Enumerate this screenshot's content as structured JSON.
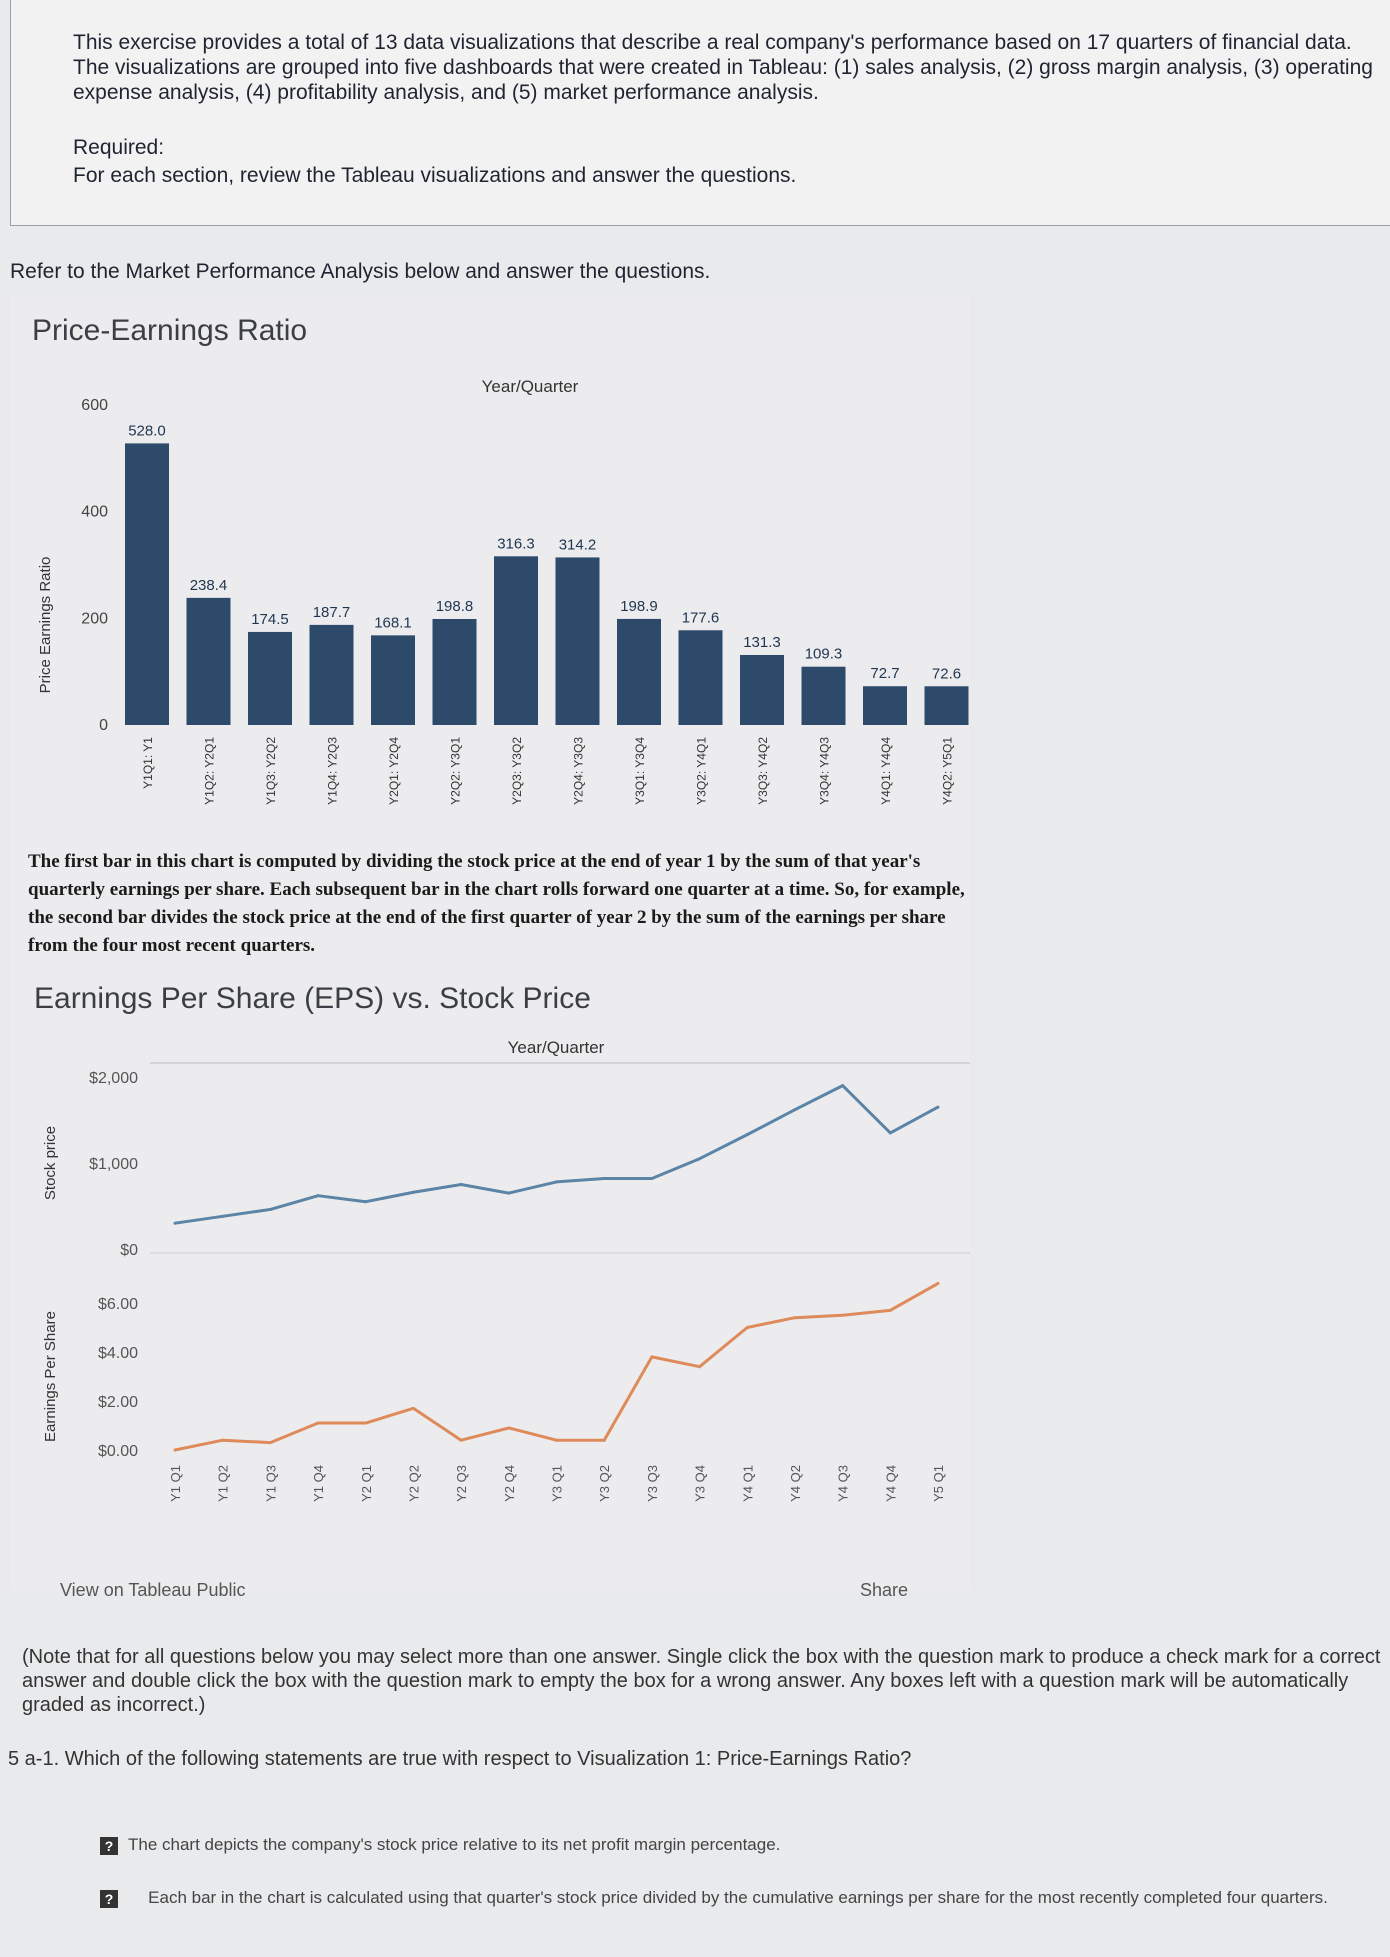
{
  "intro": {
    "text": "This exercise provides a total of 13 data visualizations that describe a real company's performance based on 17 quarters of financial data. The visualizations are grouped into five dashboards that were created in Tableau: (1) sales analysis, (2) gross margin analysis, (3) operating expense analysis, (4) profitability analysis, and (5) market performance analysis.",
    "required_label": "Required:",
    "required_text": "For each section, review the Tableau visualizations and answer the questions."
  },
  "refer_text": "Refer to the Market Performance Analysis below and answer the questions.",
  "chart_data": [
    {
      "type": "bar",
      "title": "Price-Earnings Ratio",
      "xlabel": "Year/Quarter",
      "ylabel": "Price Earnings Ratio",
      "ylim": [
        0,
        600
      ],
      "yticks": [
        0,
        200,
        400,
        600
      ],
      "categories": [
        "Y1Q1: Y1",
        "Y1Q2: Y2Q1",
        "Y1Q3: Y2Q2",
        "Y1Q4: Y2Q3",
        "Y2Q1: Y2Q4",
        "Y2Q2: Y3Q1",
        "Y2Q3: Y3Q2",
        "Y2Q4: Y3Q3",
        "Y3Q1: Y3Q4",
        "Y3Q2: Y4Q1",
        "Y3Q3: Y4Q2",
        "Y3Q4: Y4Q3",
        "Y4Q1: Y4Q4",
        "Y4Q2: Y5Q1"
      ],
      "values": [
        528.0,
        238.4,
        174.5,
        187.7,
        168.1,
        198.8,
        316.3,
        314.2,
        198.9,
        177.6,
        131.3,
        109.3,
        72.7,
        72.6
      ],
      "labels": [
        "528.0",
        "238.4",
        "174.5",
        "187.7",
        "168.1",
        "198.8",
        "316.3",
        "314.2",
        "198.9",
        "177.6",
        "131.3",
        "109.3",
        "72.7",
        "72.6"
      ],
      "color": "#2d4a6b",
      "grid": false
    },
    {
      "type": "line",
      "title": "Earnings Per Share (EPS) vs. Stock Price",
      "xlabel": "Year/Quarter",
      "x": [
        "Y1 Q1",
        "Y1 Q2",
        "Y1 Q3",
        "Y1 Q4",
        "Y2 Q1",
        "Y2 Q2",
        "Y2 Q3",
        "Y2 Q4",
        "Y3 Q1",
        "Y3 Q2",
        "Y3 Q3",
        "Y3 Q4",
        "Y4 Q1",
        "Y4 Q2",
        "Y4 Q3",
        "Y4 Q4",
        "Y5 Q1"
      ],
      "panels": [
        {
          "ylabel": "Stock price",
          "ylim": [
            0,
            2000
          ],
          "yticks": [
            "$0",
            "$1,000",
            "$2,000"
          ],
          "series": [
            {
              "values": [
                300,
                380,
                460,
                620,
                550,
                660,
                750,
                650,
                780,
                820,
                820,
                1050,
                1330,
                1620,
                1900,
                1350,
                1650
              ],
              "color": "#5b84a6"
            }
          ]
        },
        {
          "ylabel": "Earnings Per Share",
          "ylim": [
            0,
            6
          ],
          "yticks": [
            "$0.00",
            "$2.00",
            "$4.00",
            "$6.00"
          ],
          "series": [
            {
              "values": [
                0.0,
                0.4,
                0.3,
                1.1,
                1.1,
                1.7,
                0.4,
                0.9,
                0.4,
                0.4,
                3.8,
                3.4,
                5.0,
                5.4,
                5.5,
                5.7,
                6.8
              ],
              "color": "#de8a5a"
            }
          ]
        }
      ],
      "grid": false
    }
  ],
  "note": "The first bar in this chart is computed by dividing the stock price at the end of year 1 by the sum of that year's quarterly earnings per share. Each subsequent bar in the chart rolls forward one quarter at a time. So, for example, the second bar divides the stock price at the end of the first quarter of year 2 by the sum of the earnings per share from the four most recent quarters.",
  "footer": {
    "view_label": "View on Tableau Public",
    "share_label": "Share"
  },
  "instructions": "(Note that for all questions below you may select more than one answer. Single click the box with the question mark to produce a check mark for a correct answer and double click the box with the question mark to empty the box for a wrong answer. Any boxes left with a question mark will be automatically graded as incorrect.)",
  "question": "5 a-1. Which of the following statements are true with respect to Visualization 1: Price-Earnings Ratio?",
  "options": [
    {
      "mark": "?",
      "text": "The chart depicts the company's stock price relative to its net profit margin percentage."
    },
    {
      "mark": "?",
      "text": "Each bar in the chart is calculated using that quarter's stock price divided by the cumulative earnings per share for the most recently completed four quarters."
    }
  ]
}
